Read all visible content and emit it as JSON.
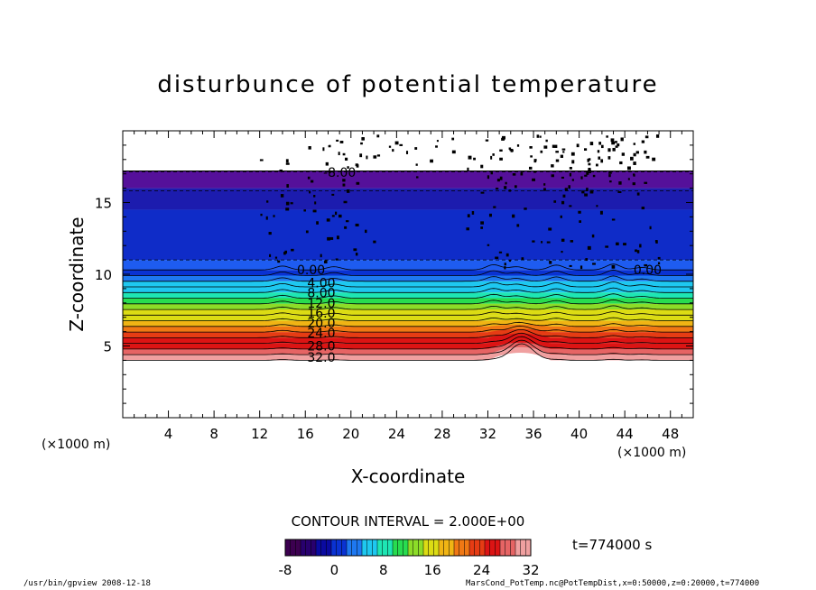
{
  "chart_data": {
    "type": "heatmap",
    "title": "disturbunce of potential temperature",
    "xlabel": "X-coordinate",
    "ylabel": "Z-coordinate",
    "x_unit_left": "(×1000 m)",
    "x_unit_right": "(×1000 m)",
    "xlim": [
      0,
      50
    ],
    "ylim": [
      0,
      20
    ],
    "x_ticks": [
      4,
      8,
      12,
      16,
      20,
      24,
      28,
      32,
      36,
      40,
      44,
      48
    ],
    "y_ticks": [
      5,
      10,
      15
    ],
    "contour_interval_text": "CONTOUR INTERVAL = 2.000E+00",
    "time_text": "t=774000 s",
    "colorbar": {
      "min": -8,
      "max": 32,
      "ticks": [
        -8,
        0,
        8,
        16,
        24,
        32
      ],
      "colors": [
        "#3c0050",
        "#28006e",
        "#0a0aa0",
        "#0a32d2",
        "#1e78f0",
        "#1ec8f0",
        "#1ee6b4",
        "#28dc50",
        "#8cdc28",
        "#dcdc14",
        "#f0b414",
        "#f07814",
        "#e63c14",
        "#dc1414",
        "#e66464",
        "#f0a0a0"
      ]
    },
    "contour_labels": [
      {
        "text": "-8.00",
        "x": 19.0,
        "z": 17.1
      },
      {
        "text": "0.00",
        "x": 16.5,
        "z": 10.3
      },
      {
        "text": "0.00",
        "x": 46.0,
        "z": 10.3
      },
      {
        "text": "4.00",
        "x": 17.4,
        "z": 9.4
      },
      {
        "text": "8.00",
        "x": 17.4,
        "z": 8.7
      },
      {
        "text": "12.0",
        "x": 17.4,
        "z": 8.0
      },
      {
        "text": "16.0",
        "x": 17.4,
        "z": 7.3
      },
      {
        "text": "20.0",
        "x": 17.4,
        "z": 6.6
      },
      {
        "text": "24.0",
        "x": 17.4,
        "z": 5.9
      },
      {
        "text": "28.0",
        "x": 17.4,
        "z": 5.0
      },
      {
        "text": "32.0",
        "x": 17.4,
        "z": 4.2
      }
    ]
  },
  "footer": {
    "left": "/usr/bin/gpview   2008-12-18",
    "right": "MarsCond_PotTemp.nc@PotTempDist,x=0:50000,z=0:20000,t=774000"
  }
}
